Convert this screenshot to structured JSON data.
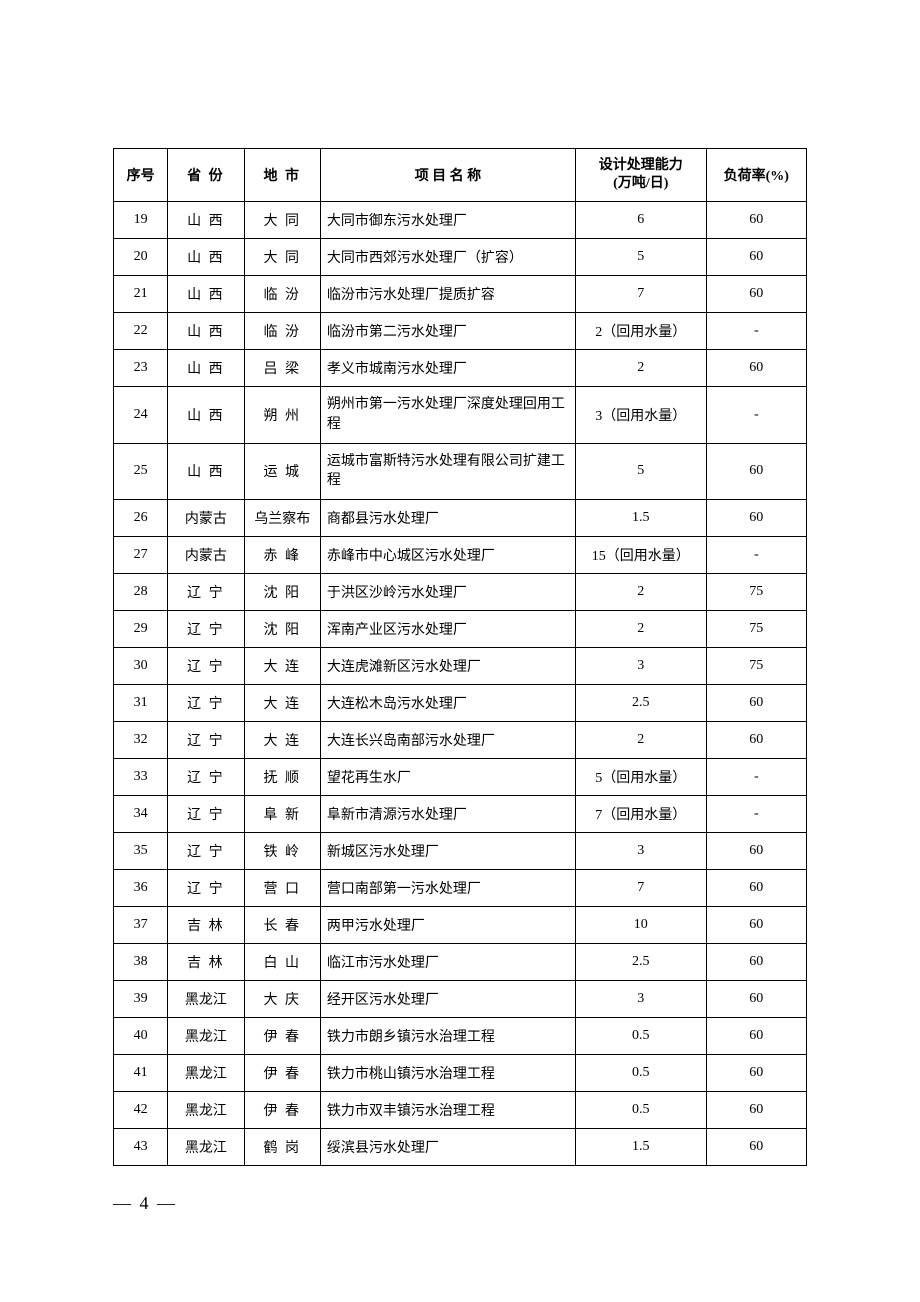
{
  "table": {
    "headers": {
      "num": "序号",
      "province": "省 份",
      "city": "地 市",
      "project": "项 目 名 称",
      "capacity": "设计处理能力\n(万吨/日)",
      "load": "负荷率(%)"
    },
    "rows": [
      {
        "num": "19",
        "province": "山 西",
        "city": "大 同",
        "project": "大同市御东污水处理厂",
        "capacity": "6",
        "load": "60"
      },
      {
        "num": "20",
        "province": "山 西",
        "city": "大 同",
        "project": "大同市西郊污水处理厂（扩容）",
        "capacity": "5",
        "load": "60"
      },
      {
        "num": "21",
        "province": "山 西",
        "city": "临 汾",
        "project": "临汾市污水处理厂提质扩容",
        "capacity": "7",
        "load": "60"
      },
      {
        "num": "22",
        "province": "山 西",
        "city": "临 汾",
        "project": "临汾市第二污水处理厂",
        "capacity": "2（回用水量）",
        "load": "-"
      },
      {
        "num": "23",
        "province": "山 西",
        "city": "吕 梁",
        "project": "孝义市城南污水处理厂",
        "capacity": "2",
        "load": "60"
      },
      {
        "num": "24",
        "province": "山 西",
        "city": "朔 州",
        "project": "朔州市第一污水处理厂深度处理回用工程",
        "capacity": "3（回用水量）",
        "load": "-",
        "multiline": true
      },
      {
        "num": "25",
        "province": "山 西",
        "city": "运 城",
        "project": "运城市富斯特污水处理有限公司扩建工程",
        "capacity": "5",
        "load": "60",
        "multiline": true
      },
      {
        "num": "26",
        "province": "内蒙古",
        "city": "乌兰察布",
        "project": "商都县污水处理厂",
        "capacity": "1.5",
        "load": "60",
        "noSpacingProvince": true,
        "noSpacingCity": true
      },
      {
        "num": "27",
        "province": "内蒙古",
        "city": "赤 峰",
        "project": "赤峰市中心城区污水处理厂",
        "capacity": "15（回用水量）",
        "load": "-",
        "noSpacingProvince": true
      },
      {
        "num": "28",
        "province": "辽 宁",
        "city": "沈 阳",
        "project": "于洪区沙岭污水处理厂",
        "capacity": "2",
        "load": "75"
      },
      {
        "num": "29",
        "province": "辽 宁",
        "city": "沈 阳",
        "project": "浑南产业区污水处理厂",
        "capacity": "2",
        "load": "75"
      },
      {
        "num": "30",
        "province": "辽 宁",
        "city": "大 连",
        "project": "大连虎滩新区污水处理厂",
        "capacity": "3",
        "load": "75"
      },
      {
        "num": "31",
        "province": "辽 宁",
        "city": "大 连",
        "project": "大连松木岛污水处理厂",
        "capacity": "2.5",
        "load": "60"
      },
      {
        "num": "32",
        "province": "辽 宁",
        "city": "大 连",
        "project": "大连长兴岛南部污水处理厂",
        "capacity": "2",
        "load": "60"
      },
      {
        "num": "33",
        "province": "辽 宁",
        "city": "抚 顺",
        "project": "望花再生水厂",
        "capacity": "5（回用水量）",
        "load": "-"
      },
      {
        "num": "34",
        "province": "辽 宁",
        "city": "阜 新",
        "project": "阜新市清源污水处理厂",
        "capacity": "7（回用水量）",
        "load": "-"
      },
      {
        "num": "35",
        "province": "辽 宁",
        "city": "铁 岭",
        "project": "新城区污水处理厂",
        "capacity": "3",
        "load": "60"
      },
      {
        "num": "36",
        "province": "辽 宁",
        "city": "营 口",
        "project": "营口南部第一污水处理厂",
        "capacity": "7",
        "load": "60"
      },
      {
        "num": "37",
        "province": "吉 林",
        "city": "长 春",
        "project": "两甲污水处理厂",
        "capacity": "10",
        "load": "60"
      },
      {
        "num": "38",
        "province": "吉 林",
        "city": "白 山",
        "project": "临江市污水处理厂",
        "capacity": "2.5",
        "load": "60"
      },
      {
        "num": "39",
        "province": "黑龙江",
        "city": "大 庆",
        "project": "经开区污水处理厂",
        "capacity": "3",
        "load": "60",
        "noSpacingProvince": true
      },
      {
        "num": "40",
        "province": "黑龙江",
        "city": "伊 春",
        "project": "铁力市朗乡镇污水治理工程",
        "capacity": "0.5",
        "load": "60",
        "noSpacingProvince": true
      },
      {
        "num": "41",
        "province": "黑龙江",
        "city": "伊 春",
        "project": "铁力市桃山镇污水治理工程",
        "capacity": "0.5",
        "load": "60",
        "noSpacingProvince": true
      },
      {
        "num": "42",
        "province": "黑龙江",
        "city": "伊 春",
        "project": "铁力市双丰镇污水治理工程",
        "capacity": "0.5",
        "load": "60",
        "noSpacingProvince": true
      },
      {
        "num": "43",
        "province": "黑龙江",
        "city": "鹤 岗",
        "project": "绥滨县污水处理厂",
        "capacity": "1.5",
        "load": "60",
        "noSpacingProvince": true
      }
    ]
  },
  "pageNumber": "— 4 —",
  "styling": {
    "background_color": "#ffffff",
    "border_color": "#000000",
    "text_color": "#000000",
    "header_fontsize": 14,
    "cell_fontsize": 14,
    "page_number_fontsize": 18,
    "font_family": "SimSun",
    "table_border_width": 1.5,
    "cell_border_width": 1,
    "column_widths": {
      "num": 54,
      "province": 76,
      "city": 76,
      "project": 254,
      "capacity": 130,
      "load": 100
    }
  }
}
